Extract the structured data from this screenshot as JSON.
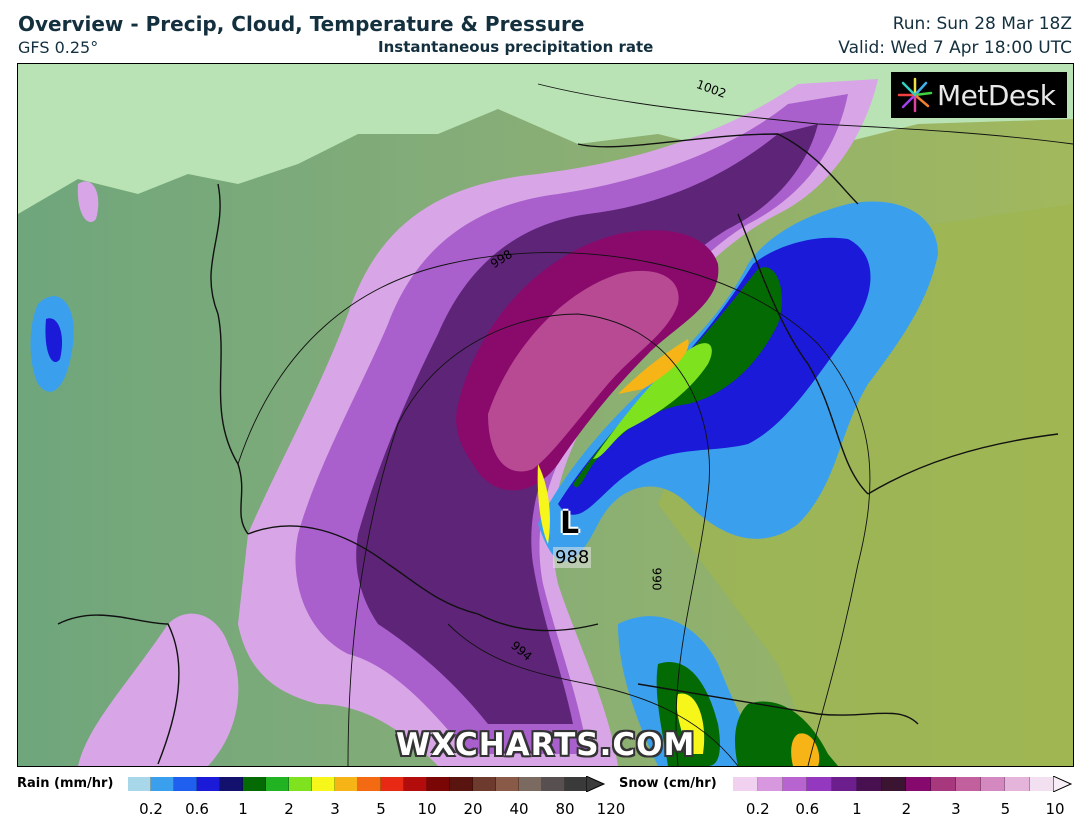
{
  "header": {
    "title": "Overview - Precip, Cloud, Temperature & Pressure",
    "model": "GFS 0.25°",
    "subtitle": "Instantaneous precipitation rate",
    "run": "Run: Sun 28 Mar 18Z",
    "valid": "Valid: Wed 7 Apr 18:00 UTC"
  },
  "logo": {
    "text": "MetDesk",
    "icon": "metdesk-burst-icon"
  },
  "watermark": "WXCHARTS.COM",
  "map": {
    "low_pressure": {
      "symbol": "L",
      "value": "988"
    },
    "isobar_labels": [
      "1002",
      "998",
      "994",
      "066"
    ]
  },
  "legend": {
    "rain": {
      "label": "Rain (mm/hr)",
      "colors": [
        "#a7d7e8",
        "#3aa0ee",
        "#1f5ff0",
        "#1a1ad8",
        "#12126e",
        "#046a04",
        "#22b322",
        "#7ee21e",
        "#f6f61a",
        "#f7b416",
        "#f46a12",
        "#e82a14",
        "#b30c0c",
        "#7a0606",
        "#5a1410",
        "#6d3a2e",
        "#8a5a48",
        "#7a6a60",
        "#585050",
        "#3a3a3a"
      ],
      "ticks": [
        "0.2",
        "0.6",
        "1",
        "2",
        "3",
        "5",
        "10",
        "20",
        "40",
        "80",
        "120"
      ]
    },
    "snow": {
      "label": "Snow (cm/hr)",
      "colors": [
        "#f0d2f0",
        "#d898e0",
        "#b864d0",
        "#9438c0",
        "#6c1e8c",
        "#48104e",
        "#3a1430",
        "#860a6e",
        "#a8387e",
        "#c2609e",
        "#d488c0",
        "#e4b4da",
        "#f2e0f0"
      ],
      "ticks": [
        "0.2",
        "0.6",
        "1",
        "2",
        "3",
        "5",
        "10"
      ]
    }
  }
}
